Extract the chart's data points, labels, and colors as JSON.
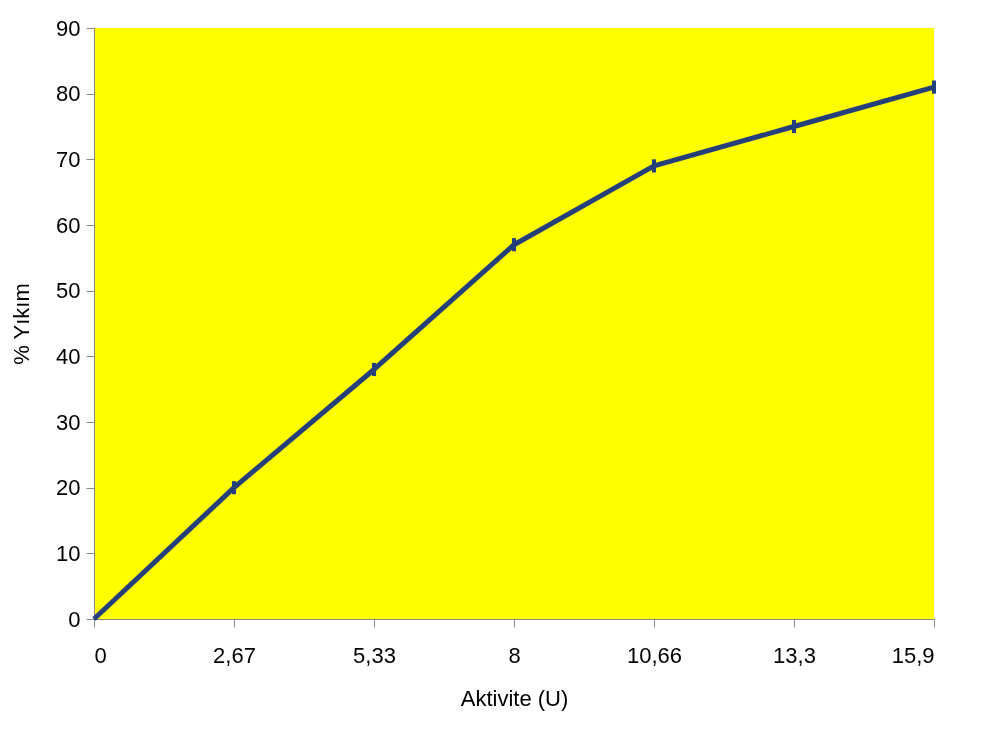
{
  "chart_data": {
    "type": "line",
    "xlabel": "Aktivite (U)",
    "ylabel": "% Yıkım",
    "categories": [
      "0",
      "2,67",
      "5,33",
      "8",
      "10,66",
      "13,3",
      "15,9"
    ],
    "series": [
      {
        "color": "#243f7a",
        "values": [
          0,
          20,
          38,
          57,
          69,
          75,
          81
        ],
        "errors": [
          null,
          1,
          1,
          1,
          1,
          1,
          1
        ]
      }
    ],
    "ylim": [
      0,
      90
    ],
    "yticks": [
      0,
      10,
      20,
      30,
      40,
      50,
      60,
      70,
      80,
      90
    ],
    "grid": false,
    "marker": "none",
    "line_style": "solid"
  }
}
